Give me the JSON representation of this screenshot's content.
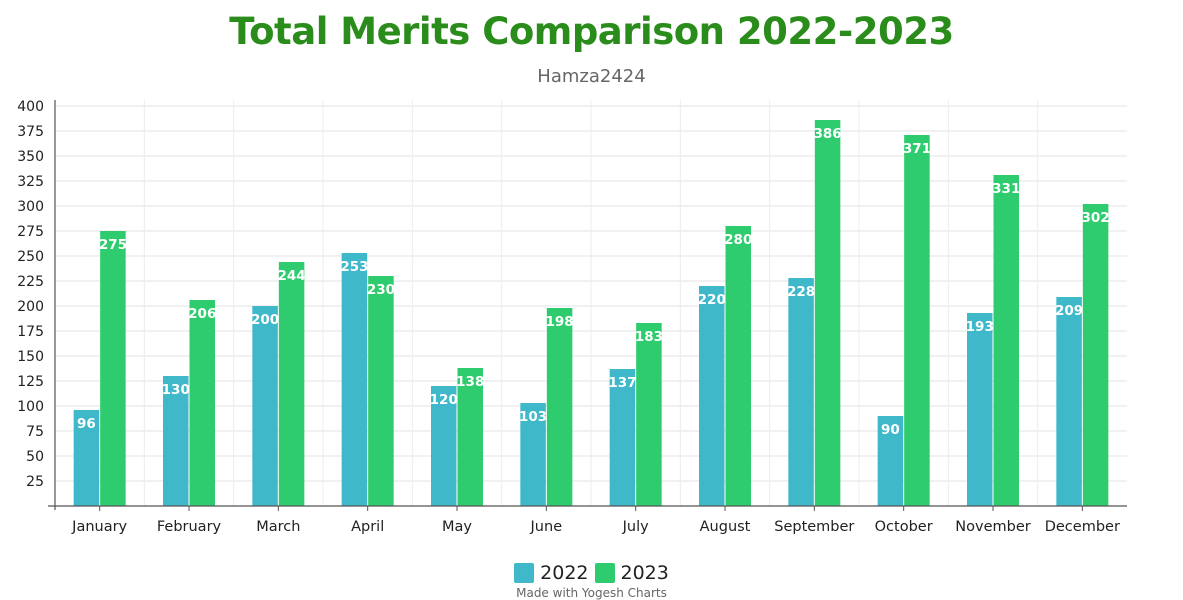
{
  "chart_data": {
    "type": "bar",
    "title": "Total Merits Comparison 2022-2023",
    "subtitle": "Hamza2424",
    "xlabel": "",
    "ylabel": "",
    "ylim": [
      0,
      400
    ],
    "yticks": [
      25,
      50,
      75,
      100,
      125,
      150,
      175,
      200,
      225,
      250,
      275,
      300,
      325,
      350,
      375,
      400
    ],
    "grid": true,
    "legend_position": "bottom",
    "categories": [
      "January",
      "February",
      "March",
      "April",
      "May",
      "June",
      "July",
      "August",
      "September",
      "October",
      "November",
      "December"
    ],
    "series": [
      {
        "name": "2022",
        "color": "#3fb8c9",
        "values": [
          96,
          130,
          200,
          253,
          120,
          103,
          137,
          220,
          228,
          90,
          193,
          209
        ]
      },
      {
        "name": "2023",
        "color": "#2ecc6e",
        "values": [
          275,
          206,
          244,
          230,
          138,
          198,
          183,
          280,
          386,
          371,
          331,
          302
        ]
      }
    ],
    "data_labels": true
  },
  "colors": {
    "title": "#2a8c1a",
    "subtitle": "#666666"
  },
  "footer": "Made with Yogesh Charts"
}
